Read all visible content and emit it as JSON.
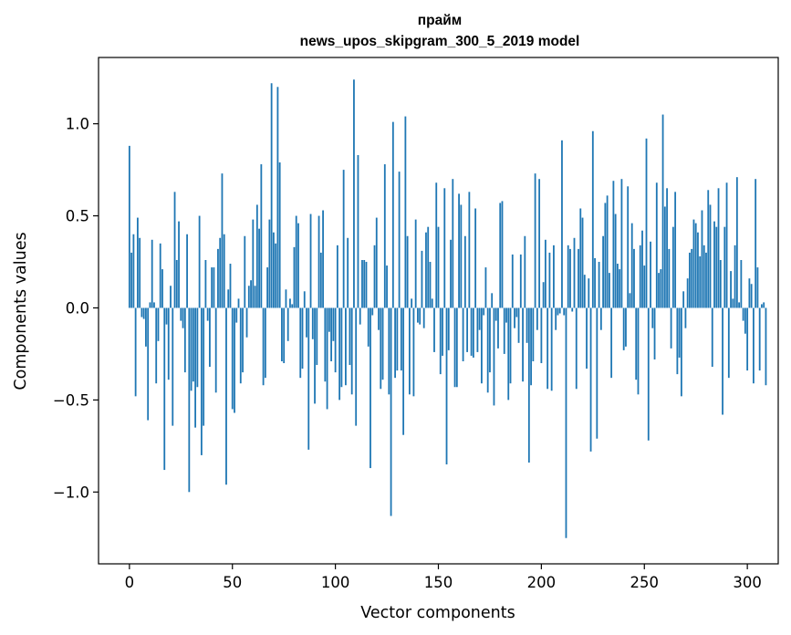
{
  "chart_data": {
    "type": "bar",
    "title_line1": "прайм",
    "title_line2": "news_upos_skipgram_300_5_2019 model",
    "xlabel": "Vector components",
    "ylabel": "Components values",
    "xlim": [
      -15,
      315
    ],
    "ylim": [
      -1.39,
      1.36
    ],
    "x_ticks": [
      0,
      50,
      100,
      150,
      200,
      250,
      300
    ],
    "x_tick_labels": [
      "0",
      "50",
      "100",
      "150",
      "200",
      "250",
      "300"
    ],
    "y_ticks": [
      -1.0,
      -0.5,
      0.0,
      0.5,
      1.0
    ],
    "y_tick_labels": [
      "−1.0",
      "−0.5",
      "0.0",
      "0.5",
      "1.0"
    ],
    "bar_color": "#1f77b4",
    "bar_width": 0.8,
    "values": [
      0.88,
      0.3,
      0.4,
      -0.48,
      0.49,
      0.38,
      -0.05,
      -0.06,
      -0.21,
      -0.61,
      0.03,
      0.37,
      0.03,
      -0.41,
      -0.18,
      0.35,
      0.21,
      -0.88,
      -0.09,
      -0.39,
      0.12,
      -0.64,
      0.63,
      0.26,
      0.47,
      -0.07,
      -0.11,
      -0.35,
      0.4,
      -1.0,
      -0.45,
      -0.4,
      -0.65,
      -0.43,
      0.5,
      -0.8,
      -0.64,
      0.26,
      -0.07,
      -0.32,
      0.22,
      0.22,
      -0.46,
      0.32,
      0.38,
      0.73,
      0.4,
      -0.96,
      0.1,
      0.24,
      -0.55,
      -0.57,
      -0.08,
      0.05,
      -0.41,
      -0.35,
      0.39,
      -0.16,
      0.12,
      0.15,
      0.48,
      0.12,
      0.56,
      0.43,
      0.78,
      -0.42,
      -0.38,
      0.22,
      0.48,
      1.22,
      0.41,
      0.35,
      1.2,
      0.79,
      -0.29,
      -0.3,
      0.1,
      -0.18,
      0.05,
      0.02,
      0.33,
      0.5,
      0.46,
      -0.38,
      -0.33,
      0.09,
      -0.16,
      -0.77,
      0.51,
      -0.17,
      -0.52,
      -0.31,
      0.5,
      0.3,
      0.53,
      -0.4,
      -0.55,
      -0.13,
      -0.29,
      -0.18,
      -0.35,
      0.34,
      -0.5,
      -0.43,
      0.75,
      -0.42,
      0.38,
      -0.31,
      -0.47,
      1.24,
      -0.64,
      0.83,
      -0.09,
      0.26,
      0.26,
      0.25,
      -0.21,
      -0.87,
      -0.04,
      0.34,
      0.49,
      -0.12,
      -0.44,
      -0.39,
      0.78,
      0.23,
      -0.47,
      -1.13,
      1.01,
      -0.38,
      -0.34,
      0.74,
      -0.34,
      -0.69,
      1.04,
      0.39,
      -0.47,
      0.05,
      -0.48,
      0.48,
      -0.08,
      -0.09,
      0.31,
      -0.11,
      0.41,
      0.44,
      0.25,
      0.05,
      -0.24,
      0.68,
      0.44,
      -0.36,
      -0.26,
      0.65,
      -0.85,
      -0.23,
      0.37,
      0.7,
      -0.43,
      -0.43,
      0.62,
      0.56,
      -0.29,
      0.39,
      -0.24,
      0.63,
      -0.26,
      -0.27,
      0.54,
      -0.24,
      -0.12,
      -0.41,
      -0.04,
      0.22,
      -0.46,
      -0.35,
      0.08,
      -0.53,
      -0.07,
      -0.22,
      0.57,
      0.58,
      -0.25,
      -0.08,
      -0.5,
      -0.41,
      0.29,
      -0.11,
      -0.05,
      -0.19,
      0.29,
      -0.4,
      0.39,
      -0.19,
      -0.84,
      -0.42,
      -0.29,
      0.73,
      -0.12,
      0.7,
      -0.3,
      0.14,
      0.37,
      -0.44,
      0.3,
      -0.45,
      0.34,
      -0.12,
      -0.04,
      -0.03,
      0.91,
      -0.04,
      -1.25,
      0.34,
      0.32,
      -0.02,
      0.38,
      -0.44,
      0.32,
      0.54,
      0.49,
      0.18,
      -0.33,
      0.16,
      -0.78,
      0.96,
      0.27,
      -0.71,
      0.25,
      -0.12,
      0.39,
      0.57,
      0.61,
      0.19,
      -0.38,
      0.69,
      0.51,
      0.24,
      0.21,
      0.7,
      -0.23,
      -0.21,
      0.66,
      0.08,
      0.46,
      0.32,
      -0.39,
      -0.47,
      0.34,
      0.42,
      0.23,
      0.92,
      -0.72,
      0.36,
      -0.11,
      -0.28,
      0.68,
      0.19,
      0.21,
      1.05,
      0.55,
      0.65,
      0.32,
      -0.22,
      0.44,
      0.63,
      -0.36,
      -0.27,
      -0.48,
      0.09,
      -0.11,
      0.16,
      0.3,
      0.32,
      0.48,
      0.46,
      0.41,
      0.28,
      0.53,
      0.34,
      0.3,
      0.64,
      0.56,
      -0.32,
      0.47,
      0.44,
      0.65,
      0.26,
      -0.58,
      0.44,
      0.68,
      -0.38,
      0.2,
      0.05,
      0.34,
      0.71,
      0.03,
      0.26,
      -0.07,
      -0.14,
      -0.34,
      0.16,
      0.13,
      -0.41,
      0.7,
      0.22,
      -0.34,
      0.02,
      0.03,
      -0.42
    ]
  }
}
